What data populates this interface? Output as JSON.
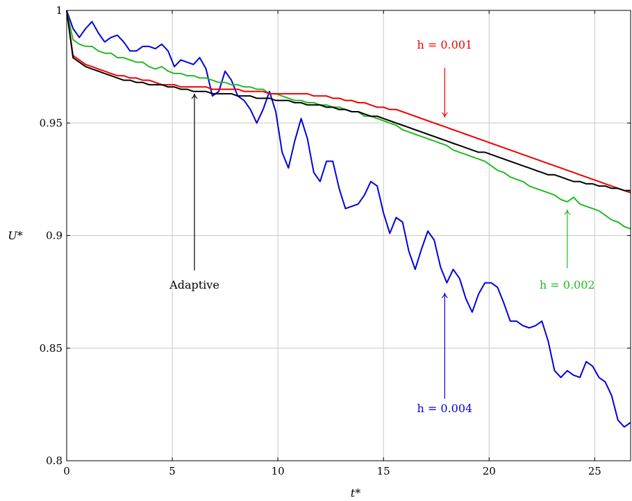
{
  "chart_data": {
    "type": "line",
    "xlabel": "t*",
    "ylabel": "U*",
    "xlim": [
      0,
      26.7
    ],
    "ylim": [
      0.8,
      1.0
    ],
    "grid": true,
    "x_ticks": [
      0,
      5,
      10,
      15,
      20,
      25
    ],
    "x_tick_labels": [
      "0",
      "5",
      "10",
      "15",
      "20",
      "25"
    ],
    "y_ticks": [
      0.8,
      0.85,
      0.9,
      0.95,
      1.0
    ],
    "y_tick_labels": [
      "0.8",
      "0.85",
      "0.9",
      "0.95",
      "1"
    ],
    "series": [
      {
        "name": "h = 0.004",
        "color": "#0000dd",
        "x": [
          0,
          0.3,
          0.6,
          0.9,
          1.2,
          1.5,
          1.8,
          2.1,
          2.4,
          2.7,
          3.0,
          3.3,
          3.6,
          3.9,
          4.2,
          4.5,
          4.8,
          5.1,
          5.4,
          5.7,
          6.0,
          6.3,
          6.6,
          6.9,
          7.2,
          7.5,
          7.8,
          8.1,
          8.4,
          8.7,
          9.0,
          9.3,
          9.6,
          9.9,
          10.2,
          10.5,
          10.8,
          11.1,
          11.4,
          11.7,
          12.0,
          12.3,
          12.6,
          12.9,
          13.2,
          13.5,
          13.8,
          14.1,
          14.4,
          14.7,
          15.0,
          15.3,
          15.6,
          15.9,
          16.2,
          16.5,
          16.8,
          17.1,
          17.4,
          17.7,
          18.0,
          18.3,
          18.6,
          18.9,
          19.2,
          19.5,
          19.8,
          20.1,
          20.4,
          20.7,
          21.0,
          21.3,
          21.6,
          21.9,
          22.2,
          22.5,
          22.8,
          23.1,
          23.4,
          23.7,
          24.0,
          24.3,
          24.6,
          24.9,
          25.2,
          25.5,
          25.8,
          26.1,
          26.4,
          26.7
        ],
        "y": [
          1.0,
          0.992,
          0.988,
          0.992,
          0.995,
          0.99,
          0.986,
          0.988,
          0.989,
          0.986,
          0.982,
          0.982,
          0.984,
          0.984,
          0.983,
          0.985,
          0.982,
          0.975,
          0.978,
          0.977,
          0.976,
          0.979,
          0.974,
          0.962,
          0.964,
          0.973,
          0.969,
          0.962,
          0.96,
          0.956,
          0.95,
          0.956,
          0.964,
          0.955,
          0.937,
          0.93,
          0.942,
          0.952,
          0.943,
          0.928,
          0.924,
          0.933,
          0.933,
          0.921,
          0.912,
          0.913,
          0.914,
          0.918,
          0.924,
          0.922,
          0.91,
          0.901,
          0.908,
          0.906,
          0.893,
          0.885,
          0.894,
          0.902,
          0.898,
          0.886,
          0.879,
          0.885,
          0.881,
          0.872,
          0.866,
          0.874,
          0.879,
          0.879,
          0.877,
          0.87,
          0.862,
          0.862,
          0.86,
          0.859,
          0.86,
          0.862,
          0.853,
          0.84,
          0.837,
          0.84,
          0.838,
          0.837,
          0.844,
          0.842,
          0.837,
          0.835,
          0.829,
          0.818,
          0.815,
          0.817
        ]
      },
      {
        "name": "h = 0.002",
        "color": "#22bb22",
        "x": [
          0,
          0.3,
          0.6,
          0.9,
          1.2,
          1.5,
          1.8,
          2.1,
          2.4,
          2.7,
          3.0,
          3.3,
          3.6,
          3.9,
          4.2,
          4.5,
          4.8,
          5.1,
          5.4,
          5.7,
          6.0,
          6.3,
          6.6,
          6.9,
          7.2,
          7.5,
          7.8,
          8.1,
          8.4,
          8.7,
          9.0,
          9.3,
          9.6,
          9.9,
          10.2,
          10.5,
          10.8,
          11.1,
          11.4,
          11.7,
          12.0,
          12.3,
          12.6,
          12.9,
          13.2,
          13.5,
          13.8,
          14.1,
          14.4,
          14.7,
          15.0,
          15.3,
          15.6,
          15.9,
          16.2,
          16.5,
          16.8,
          17.1,
          17.4,
          17.7,
          18.0,
          18.3,
          18.6,
          18.9,
          19.2,
          19.5,
          19.8,
          20.1,
          20.4,
          20.7,
          21.0,
          21.3,
          21.6,
          21.9,
          22.2,
          22.5,
          22.8,
          23.1,
          23.4,
          23.7,
          24.0,
          24.3,
          24.6,
          24.9,
          25.2,
          25.5,
          25.8,
          26.1,
          26.4,
          26.7
        ],
        "y": [
          1.0,
          0.987,
          0.985,
          0.984,
          0.984,
          0.982,
          0.981,
          0.981,
          0.979,
          0.979,
          0.978,
          0.977,
          0.977,
          0.975,
          0.974,
          0.975,
          0.973,
          0.972,
          0.972,
          0.971,
          0.971,
          0.97,
          0.97,
          0.969,
          0.968,
          0.968,
          0.967,
          0.967,
          0.966,
          0.966,
          0.965,
          0.965,
          0.963,
          0.963,
          0.962,
          0.961,
          0.96,
          0.96,
          0.959,
          0.959,
          0.958,
          0.958,
          0.957,
          0.957,
          0.956,
          0.955,
          0.955,
          0.953,
          0.953,
          0.952,
          0.951,
          0.95,
          0.949,
          0.947,
          0.946,
          0.945,
          0.944,
          0.943,
          0.942,
          0.941,
          0.94,
          0.938,
          0.937,
          0.936,
          0.935,
          0.934,
          0.933,
          0.931,
          0.929,
          0.928,
          0.926,
          0.925,
          0.924,
          0.922,
          0.921,
          0.92,
          0.919,
          0.918,
          0.916,
          0.915,
          0.917,
          0.914,
          0.913,
          0.912,
          0.911,
          0.909,
          0.907,
          0.906,
          0.904,
          0.903
        ]
      },
      {
        "name": "h = 0.001",
        "color": "#ee0000",
        "x": [
          0,
          0.3,
          0.6,
          0.9,
          1.2,
          1.5,
          1.8,
          2.1,
          2.4,
          2.7,
          3.0,
          3.3,
          3.6,
          3.9,
          4.2,
          4.5,
          4.8,
          5.1,
          5.4,
          5.7,
          6.0,
          6.3,
          6.6,
          6.9,
          7.2,
          7.5,
          7.8,
          8.1,
          8.4,
          8.7,
          9.0,
          9.3,
          9.6,
          9.9,
          10.2,
          10.5,
          10.8,
          11.1,
          11.4,
          11.7,
          12.0,
          12.3,
          12.6,
          12.9,
          13.2,
          13.5,
          13.8,
          14.1,
          14.4,
          14.7,
          15.0,
          15.3,
          15.6,
          15.9,
          16.2,
          16.5,
          16.8,
          17.1,
          17.4,
          17.7,
          18.0,
          18.3,
          18.6,
          18.9,
          19.2,
          19.5,
          19.8,
          20.1,
          20.4,
          20.7,
          21.0,
          21.3,
          21.6,
          21.9,
          22.2,
          22.5,
          22.8,
          23.1,
          23.4,
          23.7,
          24.0,
          24.3,
          24.6,
          24.9,
          25.2,
          25.5,
          25.8,
          26.1,
          26.4,
          26.7
        ],
        "y": [
          1.0,
          0.98,
          0.978,
          0.976,
          0.975,
          0.974,
          0.973,
          0.972,
          0.971,
          0.971,
          0.97,
          0.97,
          0.969,
          0.969,
          0.968,
          0.967,
          0.967,
          0.967,
          0.966,
          0.966,
          0.966,
          0.966,
          0.966,
          0.965,
          0.965,
          0.965,
          0.965,
          0.965,
          0.964,
          0.964,
          0.964,
          0.964,
          0.963,
          0.963,
          0.963,
          0.963,
          0.963,
          0.963,
          0.963,
          0.962,
          0.962,
          0.962,
          0.961,
          0.961,
          0.96,
          0.96,
          0.959,
          0.959,
          0.958,
          0.957,
          0.957,
          0.956,
          0.956,
          0.955,
          0.954,
          0.953,
          0.952,
          0.951,
          0.95,
          0.949,
          0.948,
          0.947,
          0.946,
          0.945,
          0.944,
          0.943,
          0.942,
          0.941,
          0.94,
          0.939,
          0.938,
          0.937,
          0.936,
          0.935,
          0.934,
          0.933,
          0.932,
          0.931,
          0.93,
          0.929,
          0.928,
          0.927,
          0.926,
          0.925,
          0.924,
          0.923,
          0.922,
          0.921,
          0.92,
          0.919
        ]
      },
      {
        "name": "Adaptive",
        "color": "#000000",
        "x": [
          0,
          0.3,
          0.6,
          0.9,
          1.2,
          1.5,
          1.8,
          2.1,
          2.4,
          2.7,
          3.0,
          3.3,
          3.6,
          3.9,
          4.2,
          4.5,
          4.8,
          5.1,
          5.4,
          5.7,
          6.0,
          6.3,
          6.6,
          6.9,
          7.2,
          7.5,
          7.8,
          8.1,
          8.4,
          8.7,
          9.0,
          9.3,
          9.6,
          9.9,
          10.2,
          10.5,
          10.8,
          11.1,
          11.4,
          11.7,
          12.0,
          12.3,
          12.6,
          12.9,
          13.2,
          13.5,
          13.8,
          14.1,
          14.4,
          14.7,
          15.0,
          15.3,
          15.6,
          15.9,
          16.2,
          16.5,
          16.8,
          17.1,
          17.4,
          17.7,
          18.0,
          18.3,
          18.6,
          18.9,
          19.2,
          19.5,
          19.8,
          20.1,
          20.4,
          20.7,
          21.0,
          21.3,
          21.6,
          21.9,
          22.2,
          22.5,
          22.8,
          23.1,
          23.4,
          23.7,
          24.0,
          24.3,
          24.6,
          24.9,
          25.2,
          25.5,
          25.8,
          26.1,
          26.4,
          26.7
        ],
        "y": [
          1.0,
          0.979,
          0.977,
          0.975,
          0.974,
          0.973,
          0.972,
          0.971,
          0.97,
          0.969,
          0.969,
          0.968,
          0.968,
          0.967,
          0.967,
          0.967,
          0.966,
          0.966,
          0.965,
          0.965,
          0.964,
          0.964,
          0.964,
          0.963,
          0.963,
          0.963,
          0.963,
          0.962,
          0.962,
          0.962,
          0.961,
          0.961,
          0.961,
          0.96,
          0.96,
          0.96,
          0.959,
          0.959,
          0.958,
          0.958,
          0.958,
          0.957,
          0.957,
          0.956,
          0.956,
          0.955,
          0.955,
          0.954,
          0.953,
          0.953,
          0.952,
          0.951,
          0.95,
          0.949,
          0.948,
          0.947,
          0.946,
          0.945,
          0.944,
          0.943,
          0.942,
          0.941,
          0.94,
          0.939,
          0.938,
          0.937,
          0.937,
          0.936,
          0.935,
          0.934,
          0.933,
          0.932,
          0.931,
          0.93,
          0.929,
          0.928,
          0.927,
          0.927,
          0.926,
          0.925,
          0.924,
          0.924,
          0.923,
          0.923,
          0.922,
          0.922,
          0.921,
          0.921,
          0.92,
          0.92
        ]
      }
    ],
    "annotations": [
      {
        "text": "h = 0.001",
        "color": "#ee0000",
        "arrow_x": 17.9,
        "arrow_y_from": 0.9745,
        "arrow_y_to": 0.9525,
        "text_x": 17.9,
        "text_y": 0.983
      },
      {
        "text": "h = 0.002",
        "color": "#22bb22",
        "arrow_x": 23.7,
        "arrow_y_from": 0.8855,
        "arrow_y_to": 0.9115,
        "text_x": 23.7,
        "text_y": 0.8765
      },
      {
        "text": "h = 0.004",
        "color": "#0000dd",
        "arrow_x": 17.9,
        "arrow_y_from": 0.8275,
        "arrow_y_to": 0.8745,
        "text_x": 17.9,
        "text_y": 0.8215
      },
      {
        "text": "Adaptive",
        "color": "#000000",
        "arrow_x": 6.05,
        "arrow_y_from": 0.8845,
        "arrow_y_to": 0.963,
        "text_x": 6.05,
        "text_y": 0.8765
      }
    ]
  }
}
